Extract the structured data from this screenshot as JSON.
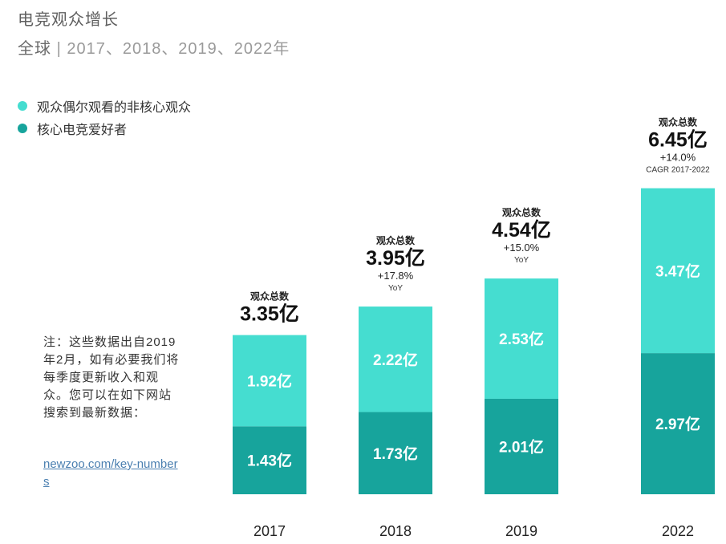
{
  "header": {
    "title": "电竞观众增长",
    "subtitle_region": "全球",
    "subtitle_sep": "|",
    "subtitle_years": "2017、2018、2019、2022年"
  },
  "legend": [
    {
      "label": "观众偶尔观看的非核心观众",
      "color": "#45ddd0"
    },
    {
      "label": "核心电竞爱好者",
      "color": "#17a49c"
    }
  ],
  "note": {
    "text": "注：这些数据出自2019年2月，如有必要我们将每季度更新收入和观众。您可以在如下网站搜索到最新数据：",
    "link": "newzoo.com/key-numbers"
  },
  "chart_data": {
    "type": "bar",
    "stacked": true,
    "categories": [
      "2017",
      "2018",
      "2019",
      "2022"
    ],
    "series": [
      {
        "name": "核心电竞爱好者",
        "values": [
          1.43,
          1.73,
          2.01,
          2.97
        ],
        "labels": [
          "1.43亿",
          "1.73亿",
          "2.01亿",
          "2.97亿"
        ],
        "color": "#17a49c"
      },
      {
        "name": "观众偶尔观看的非核心观众",
        "values": [
          1.92,
          2.22,
          2.53,
          3.47
        ],
        "labels": [
          "1.92亿",
          "2.22亿",
          "2.53亿",
          "3.47亿"
        ],
        "color": "#45ddd0"
      }
    ],
    "totals": [
      {
        "caption": "观众总数",
        "value": "3.35亿",
        "growth": "",
        "growth_label": ""
      },
      {
        "caption": "观众总数",
        "value": "3.95亿",
        "growth": "+17.8%",
        "growth_label": "YoY"
      },
      {
        "caption": "观众总数",
        "value": "4.54亿",
        "growth": "+15.0%",
        "growth_label": "YoY"
      },
      {
        "caption": "观众总数",
        "value": "6.45亿",
        "growth": "+14.0%",
        "growth_label": "CAGR 2017-2022"
      }
    ],
    "unit": "亿",
    "ylim": [
      0,
      6.45
    ]
  }
}
